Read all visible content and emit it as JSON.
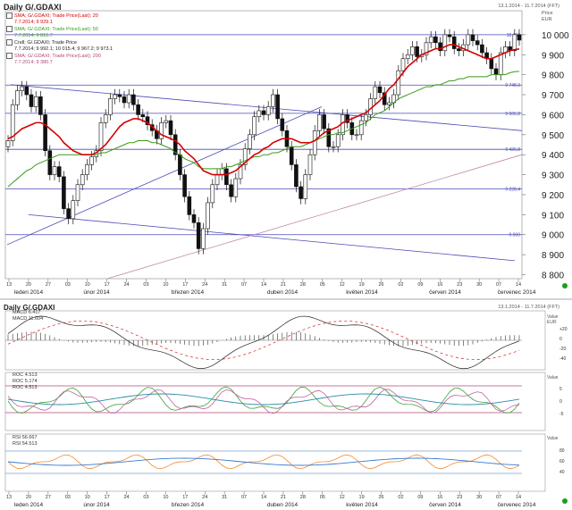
{
  "main": {
    "title": "Daily G/.GDAXI",
    "range": "13.1.2014 - 11.7.2014 (FFT)",
    "price_label": "Price",
    "currency": "EUR",
    "legend": [
      {
        "name": "SMA; G/.GDAXI; Trade Price(Last); 20",
        "value": "7.7.2014; 9 929.1",
        "color": "#d40000"
      },
      {
        "name": "SMA; G/.GDAXI; Trade Price(Last); 50",
        "value": "7.7.2014; 9 816.7",
        "color": "#3a9a1a"
      },
      {
        "name": "Cndl; G/.GDAXI; Trade Price",
        "value": "7.7.2014; 9 992.1; 10 015.4; 9 967.2; 9 973.1",
        "color": "#222222"
      },
      {
        "name": "SMA; G/.GDAXI; Trade Price(Last); 200",
        "value": "7.7.2014; 9 380.7",
        "color": "#b04a78"
      }
    ]
  },
  "lower": {
    "title": "Daily G/.GDAXI",
    "range": "13.1.2014 - 11.7.2014 (FFT)",
    "macd_labels": [
      "MACD 6.417",
      "MACD 11.604"
    ],
    "macd_unit": "Value EUR",
    "roc_labels": [
      "ROC 4.513",
      "ROC 5.174",
      "ROC 4.513"
    ],
    "roc_unit": "Value",
    "rsi_labels": [
      "RSI 56.667",
      "RSI 54.513"
    ],
    "rsi_unit": "Value"
  },
  "x_axis": {
    "day_ticks": [
      "13",
      "20",
      "27",
      "03",
      "10",
      "17",
      "24",
      "03",
      "10",
      "17",
      "24",
      "31",
      "07",
      "14",
      "21",
      "28",
      "05",
      "12",
      "19",
      "26",
      "02",
      "09",
      "16",
      "23",
      "30",
      "07",
      "14"
    ],
    "months": [
      "leden 2014",
      "únor 2014",
      "březen 2014",
      "duben 2014",
      "květen 2014",
      "červen 2014",
      "červenec 2014"
    ]
  },
  "chart_data": [
    {
      "type": "candlestick",
      "title": "Daily G/.GDAXI",
      "ylabel": "Price EUR",
      "ylim": [
        8780,
        10120
      ],
      "yticks": [
        8800,
        8900,
        9000,
        9100,
        9200,
        9300,
        9400,
        9500,
        9600,
        9700,
        9800,
        9900,
        10000
      ],
      "horizontal_levels": [
        {
          "value": 10000,
          "label": "10 000"
        },
        {
          "value": 9748.3,
          "label": "9 748,3"
        },
        {
          "value": 9606.8,
          "label": "9 606,8"
        },
        {
          "value": 9426.8,
          "label": "9 426,8"
        },
        {
          "value": 9228.4,
          "label": "9 228,4"
        },
        {
          "value": 9000,
          "label": "9 000"
        }
      ],
      "closes": [
        9470,
        9650,
        9720,
        9740,
        9700,
        9640,
        9690,
        9600,
        9420,
        9300,
        9340,
        9290,
        9130,
        9080,
        9170,
        9250,
        9300,
        9350,
        9390,
        9420,
        9560,
        9600,
        9680,
        9700,
        9690,
        9660,
        9700,
        9650,
        9600,
        9590,
        9550,
        9520,
        9480,
        9560,
        9570,
        9500,
        9400,
        9300,
        9190,
        9100,
        9060,
        8930,
        9030,
        9160,
        9250,
        9300,
        9330,
        9250,
        9190,
        9280,
        9350,
        9430,
        9500,
        9590,
        9620,
        9600,
        9640,
        9700,
        9580,
        9520,
        9440,
        9350,
        9240,
        9180,
        9300,
        9400,
        9520,
        9600,
        9530,
        9440,
        9440,
        9500,
        9600,
        9560,
        9500,
        9500,
        9570,
        9600,
        9680,
        9740,
        9710,
        9650,
        9660,
        9700,
        9820,
        9880,
        9900,
        9940,
        9890,
        9900,
        9960,
        9990,
        9960,
        9920,
        10000,
        9990,
        9930,
        9920,
        9950,
        10000,
        9970,
        9950,
        9910,
        9880,
        9830,
        9800,
        9910,
        9940,
        9920,
        10000,
        9973
      ],
      "sma20": [
        9480,
        9490,
        9510,
        9530,
        9540,
        9550,
        9560,
        9560,
        9550,
        9530,
        9510,
        9490,
        9460,
        9440,
        9420,
        9410,
        9400,
        9400,
        9400,
        9410,
        9430,
        9450,
        9480,
        9510,
        9540,
        9560,
        9570,
        9580,
        9580,
        9570,
        9560,
        9540,
        9520,
        9500,
        9490,
        9480,
        9470,
        9450,
        9420,
        9400,
        9380,
        9350,
        9320,
        9310,
        9300,
        9300,
        9300,
        9300,
        9310,
        9320,
        9340,
        9360,
        9380,
        9400,
        9410,
        9430,
        9440,
        9460,
        9470,
        9480,
        9480,
        9480,
        9470,
        9460,
        9460,
        9460,
        9470,
        9490,
        9510,
        9520,
        9530,
        9540,
        9560,
        9570,
        9580,
        9590,
        9600,
        9610,
        9630,
        9650,
        9670,
        9700,
        9730,
        9750,
        9780,
        9810,
        9840,
        9860,
        9880,
        9900,
        9910,
        9920,
        9930,
        9930,
        9940,
        9950,
        9950,
        9940,
        9930,
        9920,
        9910,
        9900,
        9890,
        9880,
        9880,
        9890,
        9900,
        9910,
        9920,
        9925,
        9929
      ],
      "sma50": [
        9240,
        9260,
        9280,
        9300,
        9320,
        9330,
        9350,
        9360,
        9370,
        9380,
        9390,
        9400,
        9400,
        9400,
        9400,
        9400,
        9400,
        9400,
        9400,
        9400,
        9410,
        9410,
        9420,
        9430,
        9440,
        9450,
        9460,
        9460,
        9470,
        9470,
        9470,
        9460,
        9460,
        9450,
        9440,
        9430,
        9410,
        9400,
        9380,
        9370,
        9360,
        9340,
        9330,
        9330,
        9330,
        9330,
        9330,
        9340,
        9340,
        9350,
        9360,
        9370,
        9380,
        9390,
        9390,
        9400,
        9400,
        9410,
        9410,
        9420,
        9430,
        9440,
        9440,
        9440,
        9450,
        9460,
        9470,
        9480,
        9490,
        9500,
        9500,
        9510,
        9510,
        9520,
        9530,
        9540,
        9550,
        9560,
        9580,
        9600,
        9610,
        9620,
        9640,
        9660,
        9680,
        9690,
        9700,
        9710,
        9720,
        9730,
        9740,
        9740,
        9750,
        9750,
        9760,
        9770,
        9770,
        9780,
        9780,
        9790,
        9790,
        9790,
        9790,
        9790,
        9800,
        9800,
        9800,
        9800,
        9810,
        9815,
        9817
      ],
      "sma200_end": 9380.7
    }
  ]
}
